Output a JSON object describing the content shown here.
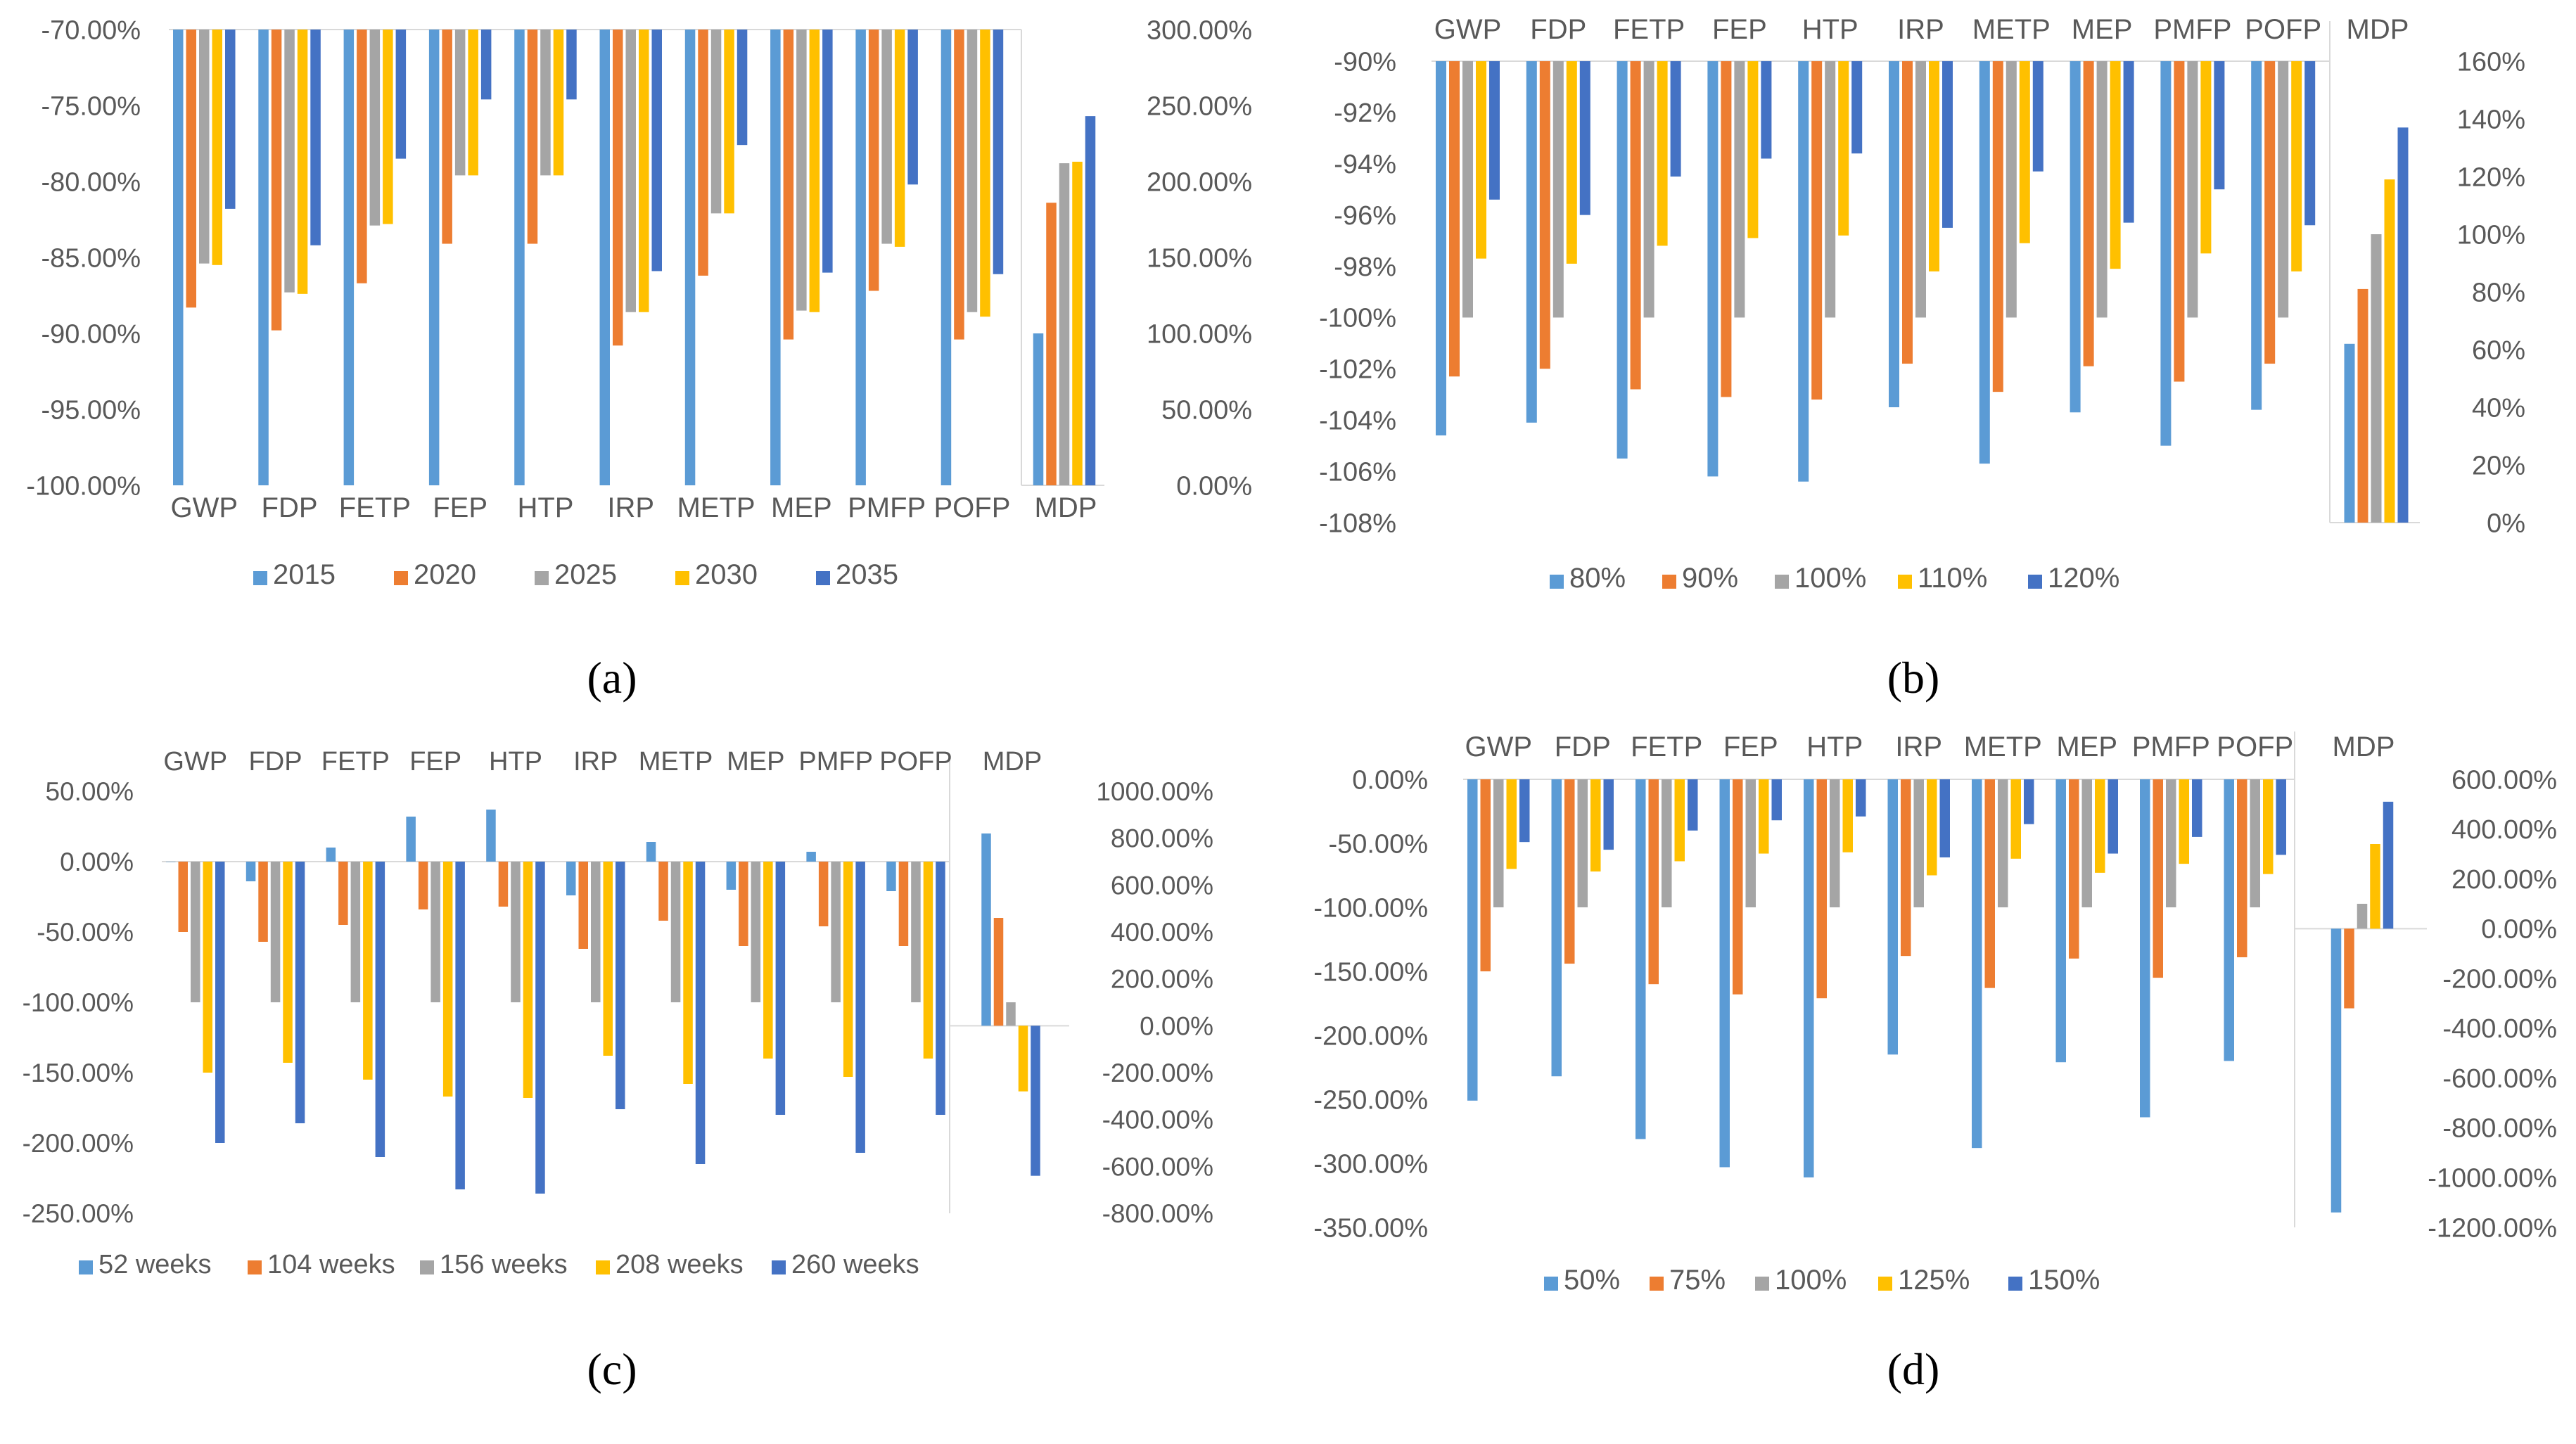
{
  "colors": [
    "#5B9BD5",
    "#ED7D31",
    "#A5A5A5",
    "#FFC000",
    "#4472C4"
  ],
  "chart_data": [
    {
      "type": "bar",
      "panel_label": "(a)",
      "categories": [
        "GWP",
        "FDP",
        "FETP",
        "FEP",
        "HTP",
        "IRP",
        "METP",
        "MEP",
        "PMFP",
        "POFP"
      ],
      "secondary_categories": [
        "MDP"
      ],
      "series": [
        {
          "name": "2015",
          "values": [
            -100,
            -100,
            -100,
            -100,
            -100,
            -100,
            -100,
            -100,
            -100,
            -100
          ],
          "secondary_values": [
            100
          ]
        },
        {
          "name": "2020",
          "values": [
            -88.3,
            -89.8,
            -86.7,
            -84.1,
            -84.1,
            -90.8,
            -86.2,
            -90.4,
            -87.2,
            -90.4
          ],
          "secondary_values": [
            186
          ]
        },
        {
          "name": "2025",
          "values": [
            -85.4,
            -87.3,
            -82.9,
            -79.6,
            -79.6,
            -88.6,
            -82.1,
            -88.5,
            -84.1,
            -88.6
          ],
          "secondary_values": [
            212
          ]
        },
        {
          "name": "2030",
          "values": [
            -85.5,
            -87.4,
            -82.8,
            -79.6,
            -79.6,
            -88.6,
            -82.1,
            -88.6,
            -84.3,
            -88.9
          ],
          "secondary_values": [
            213
          ]
        },
        {
          "name": "2035",
          "values": [
            -81.8,
            -84.2,
            -78.5,
            -74.6,
            -74.6,
            -85.9,
            -77.6,
            -86,
            -80.2,
            -86.1
          ],
          "secondary_values": [
            243
          ]
        }
      ],
      "y_ticks": [
        "-70.00%",
        "-75.00%",
        "-80.00%",
        "-85.00%",
        "-90.00%",
        "-95.00%",
        "-100.00%"
      ],
      "y2_ticks": [
        "300.00%",
        "250.00%",
        "200.00%",
        "150.00%",
        "100.00%",
        "50.00%",
        "0.00%"
      ],
      "ylim": [
        -100,
        -70
      ],
      "y2lim": [
        0,
        300
      ],
      "legend": "bottom"
    },
    {
      "type": "bar",
      "panel_label": "(b)",
      "categories": [
        "GWP",
        "FDP",
        "FETP",
        "FEP",
        "HTP",
        "IRP",
        "METP",
        "MEP",
        "PMFP",
        "POFP"
      ],
      "secondary_categories": [
        "MDP"
      ],
      "series": [
        {
          "name": "80%",
          "values": [
            -104.6,
            -104.1,
            -105.5,
            -106.2,
            -106.4,
            -103.5,
            -105.7,
            -103.7,
            -105,
            -103.6
          ],
          "secondary_values": [
            62
          ]
        },
        {
          "name": "90%",
          "values": [
            -102.3,
            -102,
            -102.8,
            -103.1,
            -103.2,
            -101.8,
            -102.9,
            -101.9,
            -102.5,
            -101.8
          ],
          "secondary_values": [
            81
          ]
        },
        {
          "name": "100%",
          "values": [
            -100,
            -100,
            -100,
            -100,
            -100,
            -100,
            -100,
            -100,
            -100,
            -100
          ],
          "secondary_values": [
            100
          ]
        },
        {
          "name": "110%",
          "values": [
            -97.7,
            -97.9,
            -97.2,
            -96.9,
            -96.8,
            -98.2,
            -97.1,
            -98.1,
            -97.5,
            -98.2
          ],
          "secondary_values": [
            119
          ]
        },
        {
          "name": "120%",
          "values": [
            -95.4,
            -96,
            -94.5,
            -93.8,
            -93.6,
            -96.5,
            -94.3,
            -96.3,
            -95,
            -96.4
          ],
          "secondary_values": [
            137
          ]
        }
      ],
      "y_ticks": [
        "-90%",
        "-92%",
        "-94%",
        "-96%",
        "-98%",
        "-100%",
        "-102%",
        "-104%",
        "-106%",
        "-108%"
      ],
      "y2_ticks": [
        "160%",
        "140%",
        "120%",
        "100%",
        "80%",
        "60%",
        "40%",
        "20%",
        "0%"
      ],
      "ylim": [
        -108,
        -90
      ],
      "y2lim": [
        0,
        160
      ],
      "legend": "bottom"
    },
    {
      "type": "bar",
      "panel_label": "(c)",
      "categories": [
        "GWP",
        "FDP",
        "FETP",
        "FEP",
        "HTP",
        "IRP",
        "METP",
        "MEP",
        "PMFP",
        "POFP"
      ],
      "secondary_categories": [
        "MDP"
      ],
      "series": [
        {
          "name": "52 weeks",
          "values": [
            0,
            -14,
            10,
            32,
            37,
            -24,
            14,
            -20,
            7,
            -21
          ],
          "secondary_values": [
            820
          ]
        },
        {
          "name": "104 weeks",
          "values": [
            -50,
            -57,
            -45,
            -34,
            -32,
            -62,
            -42,
            -60,
            -46,
            -60
          ],
          "secondary_values": [
            460
          ]
        },
        {
          "name": "156 weeks",
          "values": [
            -100,
            -100,
            -100,
            -100,
            -100,
            -100,
            -100,
            -100,
            -100,
            -100
          ],
          "secondary_values": [
            100
          ]
        },
        {
          "name": "208 weeks",
          "values": [
            -150,
            -143,
            -155,
            -167,
            -168,
            -138,
            -158,
            -140,
            -153,
            -140
          ],
          "secondary_values": [
            -280
          ]
        },
        {
          "name": "260 weeks",
          "values": [
            -200,
            -186,
            -210,
            -233,
            -236,
            -176,
            -215,
            -180,
            -207,
            -180
          ],
          "secondary_values": [
            -640
          ]
        }
      ],
      "y_ticks": [
        "50.00%",
        "0.00%",
        "-50.00%",
        "-100.00%",
        "-150.00%",
        "-200.00%",
        "-250.00%"
      ],
      "y2_ticks": [
        "1000.00%",
        "800.00%",
        "600.00%",
        "400.00%",
        "200.00%",
        "0.00%",
        "-200.00%",
        "-400.00%",
        "-600.00%",
        "-800.00%"
      ],
      "ylim": [
        -250,
        50
      ],
      "y2lim": [
        -800,
        1000
      ],
      "legend": "bottom"
    },
    {
      "type": "bar",
      "panel_label": "(d)",
      "categories": [
        "GWP",
        "FDP",
        "FETP",
        "FEP",
        "HTP",
        "IRP",
        "METP",
        "MEP",
        "PMFP",
        "POFP"
      ],
      "secondary_categories": [
        "MDP"
      ],
      "series": [
        {
          "name": "50%",
          "values": [
            -251,
            -232,
            -281,
            -303,
            -311,
            -215,
            -288,
            -221,
            -264,
            -220
          ],
          "secondary_values": [
            -1140
          ]
        },
        {
          "name": "75%",
          "values": [
            -150,
            -144,
            -160,
            -168,
            -171,
            -138,
            -163,
            -140,
            -155,
            -139
          ],
          "secondary_values": [
            -320
          ]
        },
        {
          "name": "100%",
          "values": [
            -100,
            -100,
            -100,
            -100,
            -100,
            -100,
            -100,
            -100,
            -100,
            -100
          ],
          "secondary_values": [
            100
          ]
        },
        {
          "name": "125%",
          "values": [
            -70,
            -72,
            -64,
            -58,
            -57,
            -75,
            -62,
            -73,
            -66,
            -74
          ],
          "secondary_values": [
            340
          ]
        },
        {
          "name": "150%",
          "values": [
            -49,
            -55,
            -40,
            -32,
            -29,
            -61,
            -35,
            -58,
            -45,
            -59
          ],
          "secondary_values": [
            510
          ]
        }
      ],
      "y_ticks": [
        "0.00%",
        "-50.00%",
        "-100.00%",
        "-150.00%",
        "-200.00%",
        "-250.00%",
        "-300.00%",
        "-350.00%"
      ],
      "y2_ticks": [
        "600.00%",
        "400.00%",
        "200.00%",
        "0.00%",
        "-200.00%",
        "-400.00%",
        "-600.00%",
        "-800.00%",
        "-1000.00%",
        "-1200.00%"
      ],
      "ylim": [
        -350,
        0
      ],
      "y2lim": [
        -1200,
        600
      ],
      "legend": "bottom"
    }
  ]
}
